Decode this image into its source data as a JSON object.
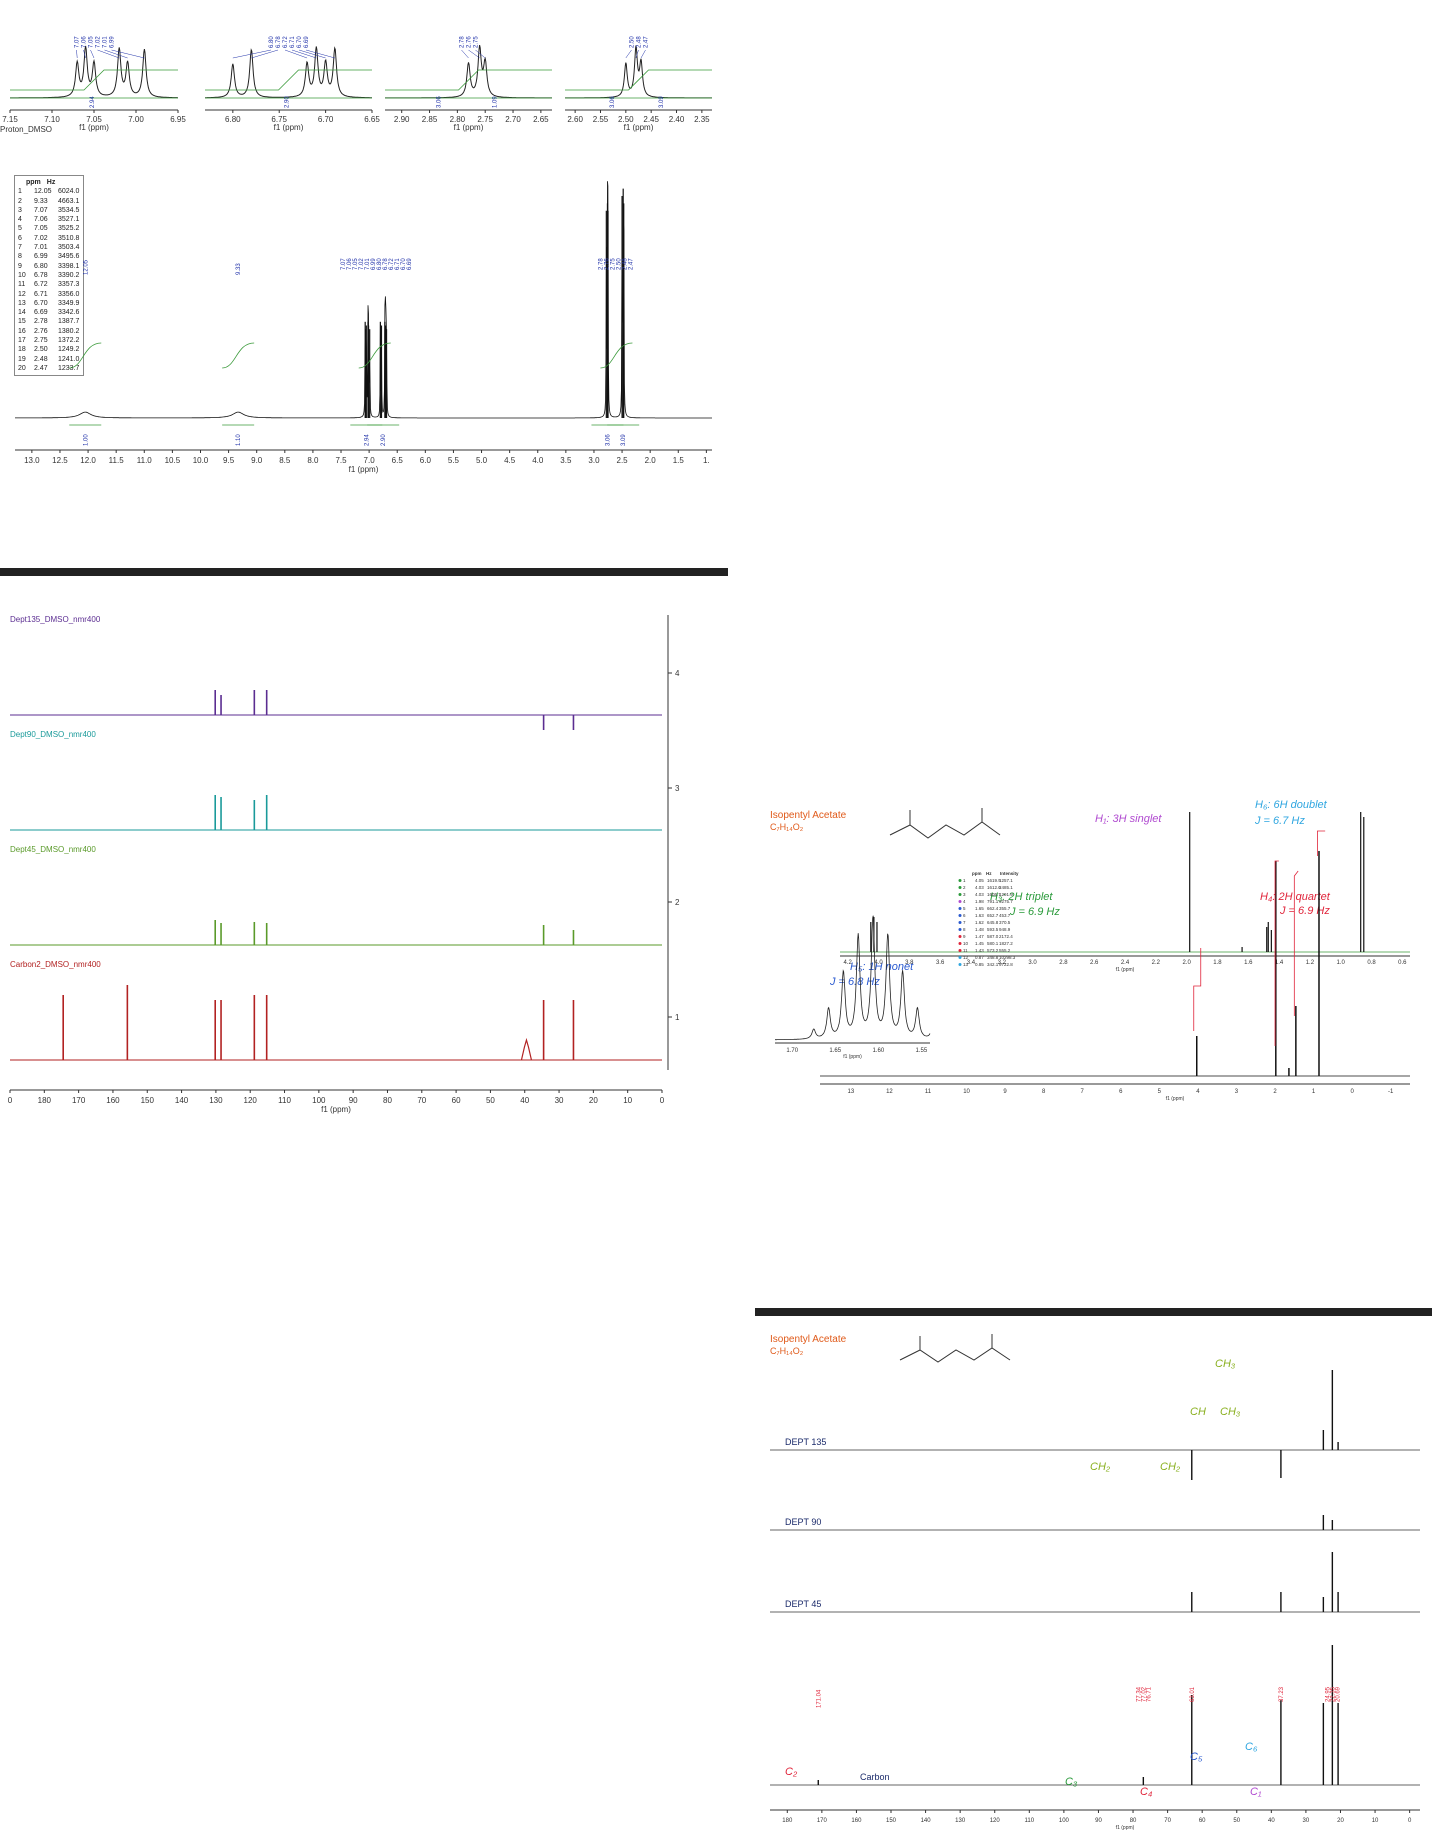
{
  "h1_zoom_panels": [
    {
      "ticks": [
        "7.15",
        "7.10",
        "7.05",
        "7.00",
        "6.95"
      ],
      "xmin": 6.95,
      "xmax": 7.15,
      "axis_label": "f1 (ppm)",
      "extra_label": "Proton_DMSO",
      "peaks": [
        7.07,
        7.06,
        7.05,
        7.02,
        7.01,
        6.99
      ],
      "peak_labels": [
        "7.07",
        "7.06",
        "7.05",
        "7.02",
        "7.01",
        "6.99"
      ],
      "integral": "2.94"
    },
    {
      "ticks": [
        "6.80",
        "6.75",
        "6.70",
        "6.65"
      ],
      "xmin": 6.65,
      "xmax": 6.83,
      "axis_label": "f1 (ppm)",
      "peaks": [
        6.8,
        6.78,
        6.72,
        6.71,
        6.7,
        6.69
      ],
      "peak_labels": [
        "6.80",
        "6.78",
        "6.72",
        "6.71",
        "6.70",
        "6.69"
      ],
      "integral": "2.90"
    },
    {
      "ticks": [
        "2.90",
        "2.85",
        "2.80",
        "2.75",
        "2.70",
        "2.65"
      ],
      "xmin": 2.63,
      "xmax": 2.93,
      "axis_label": "f1 (ppm)",
      "peaks": [
        2.78,
        2.76,
        2.75
      ],
      "peak_labels": [
        "2.78",
        "2.76",
        "2.75"
      ],
      "integrals": [
        "3.06",
        "1.09"
      ]
    },
    {
      "ticks": [
        "2.60",
        "2.55",
        "2.50",
        "2.45",
        "2.40",
        "2.35"
      ],
      "xmin": 2.33,
      "xmax": 2.62,
      "axis_label": "f1 (ppm)",
      "peaks": [
        2.5,
        2.48,
        2.47
      ],
      "peak_labels": [
        "2.50",
        "2.48",
        "2.47"
      ],
      "integrals": [
        "3.06",
        "3.09"
      ]
    }
  ],
  "peak_table": {
    "headers": [
      "ppm",
      "Hz"
    ],
    "rows": [
      [
        "1",
        "12.05",
        "6024.0"
      ],
      [
        "2",
        "9.33",
        "4663.1"
      ],
      [
        "3",
        "7.07",
        "3534.5"
      ],
      [
        "4",
        "7.06",
        "3527.1"
      ],
      [
        "5",
        "7.05",
        "3525.2"
      ],
      [
        "6",
        "7.02",
        "3510.8"
      ],
      [
        "7",
        "7.01",
        "3503.4"
      ],
      [
        "8",
        "6.99",
        "3495.6"
      ],
      [
        "9",
        "6.80",
        "3398.1"
      ],
      [
        "10",
        "6.78",
        "3390.2"
      ],
      [
        "11",
        "6.72",
        "3357.3"
      ],
      [
        "12",
        "6.71",
        "3356.0"
      ],
      [
        "13",
        "6.70",
        "3349.9"
      ],
      [
        "14",
        "6.69",
        "3342.6"
      ],
      [
        "15",
        "2.78",
        "1387.7"
      ],
      [
        "16",
        "2.76",
        "1380.2"
      ],
      [
        "17",
        "2.75",
        "1372.2"
      ],
      [
        "18",
        "2.50",
        "1249.2"
      ],
      [
        "19",
        "2.48",
        "1241.0"
      ],
      [
        "20",
        "2.47",
        "1233.7"
      ]
    ]
  },
  "h1_full": {
    "ticks": [
      "13.0",
      "12.5",
      "12.0",
      "11.5",
      "11.0",
      "10.5",
      "10.0",
      "9.5",
      "9.0",
      "8.5",
      "8.0",
      "7.5",
      "7.0",
      "6.5",
      "6.0",
      "5.5",
      "5.0",
      "4.5",
      "4.0",
      "3.5",
      "3.0",
      "2.5",
      "2.0",
      "1.5",
      "1."
    ],
    "axis_label": "f1 (ppm)",
    "peak_label_groups": [
      [
        "12.05"
      ],
      [
        "9.33"
      ],
      [
        "7.07",
        "7.06",
        "7.05",
        "7.02",
        "7.01",
        "6.99",
        "6.80",
        "6.78",
        "6.72",
        "6.71",
        "6.70",
        "6.69"
      ],
      [
        "2.78",
        "2.76",
        "2.75",
        "2.50",
        "2.48",
        "2.47"
      ]
    ],
    "integrals": [
      "1.00",
      "1.10",
      "2.94",
      "2.90",
      "3.06",
      "3.09"
    ]
  },
  "c13_panel": {
    "traces": [
      {
        "name": "Dept135_DMSO_nmr400",
        "color": "#5b2d91"
      },
      {
        "name": "Dept90_DMSO_nmr400",
        "color": "#1a9a9a"
      },
      {
        "name": "Dept45_DMSO_nmr400",
        "color": "#5a9a2a"
      },
      {
        "name": "Carbon2_DMSO_nmr400",
        "color": "#b22222"
      }
    ],
    "ticks": [
      "0",
      "180",
      "170",
      "160",
      "150",
      "140",
      "130",
      "120",
      "110",
      "100",
      "90",
      "80",
      "70",
      "60",
      "50",
      "40",
      "30",
      "20",
      "10",
      "0"
    ],
    "axis_label": "f1 (ppm)",
    "right_ticks": [
      "4",
      "3",
      "2",
      "1"
    ]
  },
  "iso_h1": {
    "title": "Isopentyl Acetate",
    "formula": "C₇H₁₄O₂",
    "annotations": [
      {
        "text": "H₁: 3H singlet",
        "color": "#b04ad0"
      },
      {
        "text": "H₆: 6H doublet",
        "color": "#2fa6e0"
      },
      {
        "text": "J = 6.7 Hz",
        "color": "#2fa6e0"
      },
      {
        "text": "H₄: 2H quartet",
        "color": "#e0243a"
      },
      {
        "text": "J = 6.9 Hz",
        "color": "#e0243a"
      },
      {
        "text": "H₃: 2H triplet",
        "color": "#2a9a3a"
      },
      {
        "text": "J = 6.9 Hz",
        "color": "#2a9a3a"
      },
      {
        "text": "H₅: 1H nonet",
        "color": "#2a5ad0"
      },
      {
        "text": "J = 6.8 Hz",
        "color": "#2a5ad0"
      }
    ],
    "top_ticks": [
      "4.2",
      "4.0",
      "3.8",
      "3.6",
      "3.4",
      "3.2",
      "3.0",
      "2.8",
      "2.6",
      "2.4",
      "2.2",
      "2.0",
      "1.8",
      "1.6",
      "1.4",
      "1.2",
      "1.0",
      "0.8",
      "0.6"
    ],
    "inset_ticks": [
      "1.70",
      "1.65",
      "1.60",
      "1.55"
    ],
    "bottom_ticks": [
      "13",
      "12",
      "11",
      "10",
      "9",
      "8",
      "7",
      "6",
      "5",
      "4",
      "3",
      "2",
      "1",
      "0",
      "-1"
    ],
    "axis_label": "f1 (ppm)",
    "table_headers": [
      "ppm",
      "Hz",
      "Intensity"
    ],
    "table_rows": [
      [
        "1",
        "4.05",
        "1619.9",
        "1257.1"
      ],
      [
        "2",
        "4.03",
        "1612.6",
        "2485.1"
      ],
      [
        "3",
        "4.03",
        "1605.7",
        "1291.9"
      ],
      [
        "4",
        "1.98",
        "791.1",
        "9275.7"
      ],
      [
        "5",
        "1.65",
        "662.4",
        "355.7"
      ],
      [
        "6",
        "1.63",
        "652.7",
        "453.7"
      ],
      [
        "7",
        "1.62",
        "645.8",
        "370.5"
      ],
      [
        "8",
        "1.48",
        "593.5",
        "948.9"
      ],
      [
        "9",
        "1.47",
        "587.0",
        "2172.4"
      ],
      [
        "10",
        "1.45",
        "580.1",
        "1827.2"
      ],
      [
        "11",
        "1.43",
        "573.2",
        "555.2"
      ],
      [
        "12",
        "0.87",
        "348.8",
        "10298.3"
      ],
      [
        "13",
        "0.85",
        "342.1",
        "9722.8"
      ]
    ]
  },
  "iso_c13": {
    "title": "Isopentyl Acetate",
    "formula": "C₇H₁₄O₂",
    "dept_labels": [
      "DEPT 135",
      "DEPT 90",
      "DEPT 45",
      "Carbon"
    ],
    "peak_labels": [
      "171.04",
      "77.34",
      "77.02",
      "76.71",
      "63.01",
      "37.23",
      "24.95",
      "22.35",
      "20.69"
    ],
    "annotations": [
      "CH₃",
      "CH",
      "CH₃",
      "CH₂",
      "CH₂",
      "C₂",
      "C₃",
      "C₄",
      "C₅",
      "C₆",
      "C₁"
    ],
    "ticks": [
      "180",
      "170",
      "160",
      "150",
      "140",
      "130",
      "120",
      "110",
      "100",
      "90",
      "80",
      "70",
      "60",
      "50",
      "40",
      "30",
      "20",
      "10",
      "0"
    ],
    "axis_label": "f1 (ppm)"
  }
}
